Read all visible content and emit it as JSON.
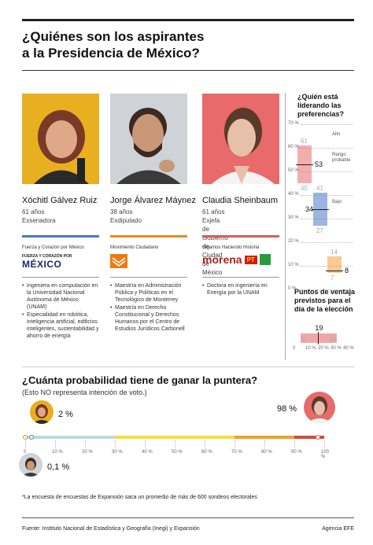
{
  "title_line1": "¿Quiénes son los aspirantes",
  "title_line2": "a la Presidencia de México?",
  "candidates": [
    {
      "name": "Xóchitl Gálvez Ruiz",
      "age": "61 años",
      "role": "Exsenadora",
      "color": "#4a78c8",
      "photo_bg": "#e8b020",
      "party": "Fuerza y Corazón por México",
      "logo_line1": "FUERZA Y CORAZÓN POR",
      "logo_line2": "MÉXICO",
      "bullets": [
        "Ingeniera en computación en la Universidad Nacional Autónoma de México (UNAM)",
        "Especialidad en robótica, inteligencia artificial, edificios inteligentes, sustentabilidad y ahorro de energía"
      ]
    },
    {
      "name": "Jorge Álvarez Máynez",
      "age": "38 años",
      "role": "Exdiputado",
      "color": "#e88a20",
      "photo_bg": "#cfd3d8",
      "party": "Movimiento Ciudadano",
      "bullets": [
        "Maestría en Administración Pública y Políticas en el Tecnológico de Monterrey",
        "Maestría en Derecho Constitucional y Derechos Humanos por el Centro de Estudios Jurídicos Carbonell"
      ]
    },
    {
      "name": "Claudia Sheinbaum",
      "age": "61 años",
      "role_line1": "Exjefa de Gobierno",
      "role_line2": "de Ciudad de México",
      "color": "#e05a5a",
      "photo_bg": "#e86a6a",
      "party": "Sigamos Haciendo Historia",
      "logo_text": "morena",
      "logo_pt": "PT",
      "bullets": [
        "Doctora en ingeniería en Energía por la UNAM"
      ]
    }
  ],
  "side": {
    "title": "¿Quién está liderando las preferencias?",
    "ticks": [
      "70 %",
      "60 %",
      "50 %",
      "40 %",
      "30 %",
      "20 %",
      "10 %",
      "0 %"
    ],
    "legend_alto": "Alto",
    "legend_rango": "Rango probable",
    "legend_bajo": "Bajo",
    "boxes": [
      {
        "high": 61,
        "mid": 53,
        "low": 45,
        "color": "#e86a6a"
      },
      {
        "high": 41,
        "mid": 34,
        "low": 27,
        "color": "#4a78c8"
      },
      {
        "high": 14,
        "mid": 8,
        "low": 7,
        "color": "#f0a040"
      }
    ],
    "lead_title": "Puntos de ventaja previstos para el día de la elección",
    "lead": {
      "low": 5,
      "mid": 19,
      "high": 34
    },
    "lead_ticks": [
      "0",
      "10 %",
      "20 %",
      "30 %",
      "40 %"
    ]
  },
  "prob": {
    "title": "¿Cuánta probabilidad tiene de ganar la puntera?",
    "subtitle": "(Esto NO representa intención de voto.)",
    "xochitl_pct": "2 %",
    "jorge_pct": "0,1 %",
    "claudia_pct": "98 %",
    "values": {
      "xochitl": 2,
      "jorge": 0.1,
      "claudia": 98
    },
    "ticks": [
      "0",
      "10 %",
      "20 %",
      "30 %",
      "40 %",
      "50 %",
      "60 %",
      "70 %",
      "80 %",
      "90 %",
      "100 %"
    ],
    "segment_colors": [
      "#b8dce0",
      "#f5df3a",
      "#f0a030",
      "#d84a3a"
    ]
  },
  "note": "*La encuesta de encuestas de Expansión saca un promedio de más de 600 sondeos electorales",
  "source": "Fuente: Instituto Nacional de Estadística y Geografía (Inegi) y Expansión",
  "agency": "Agencia EFE"
}
